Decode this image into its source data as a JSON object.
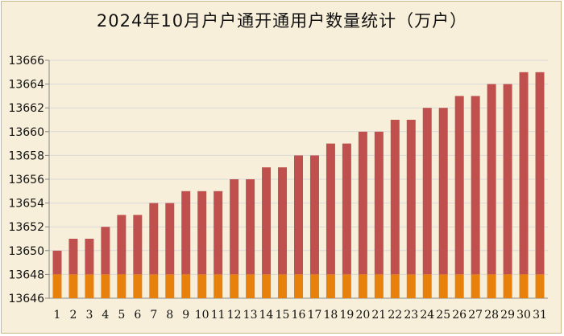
{
  "chart_data": {
    "type": "bar",
    "title": "2024年10月户户通开通用户数量统计（万户）",
    "categories": [
      "1",
      "2",
      "3",
      "4",
      "5",
      "6",
      "7",
      "8",
      "9",
      "10",
      "11",
      "12",
      "13",
      "14",
      "15",
      "16",
      "17",
      "18",
      "19",
      "20",
      "21",
      "22",
      "23",
      "24",
      "25",
      "26",
      "27",
      "28",
      "29",
      "30",
      "31"
    ],
    "values": [
      13650,
      13651,
      13651,
      13652,
      13653,
      13653,
      13654,
      13654,
      13655,
      13655,
      13655,
      13656,
      13656,
      13657,
      13657,
      13658,
      13658,
      13659,
      13659,
      13660,
      13660,
      13661,
      13661,
      13662,
      13662,
      13663,
      13663,
      13664,
      13664,
      13665,
      13665
    ],
    "base_segment_top": 13648,
    "ylim": [
      13646,
      13666
    ],
    "yticks": [
      13646,
      13648,
      13650,
      13652,
      13654,
      13656,
      13658,
      13660,
      13662,
      13664,
      13666
    ],
    "grid": true,
    "legend": "none",
    "colors": {
      "bar_upper": "#c0504d",
      "bar_lower": "#e8800c",
      "grid": "#d9d9d9",
      "background": "#f7efd9"
    }
  }
}
